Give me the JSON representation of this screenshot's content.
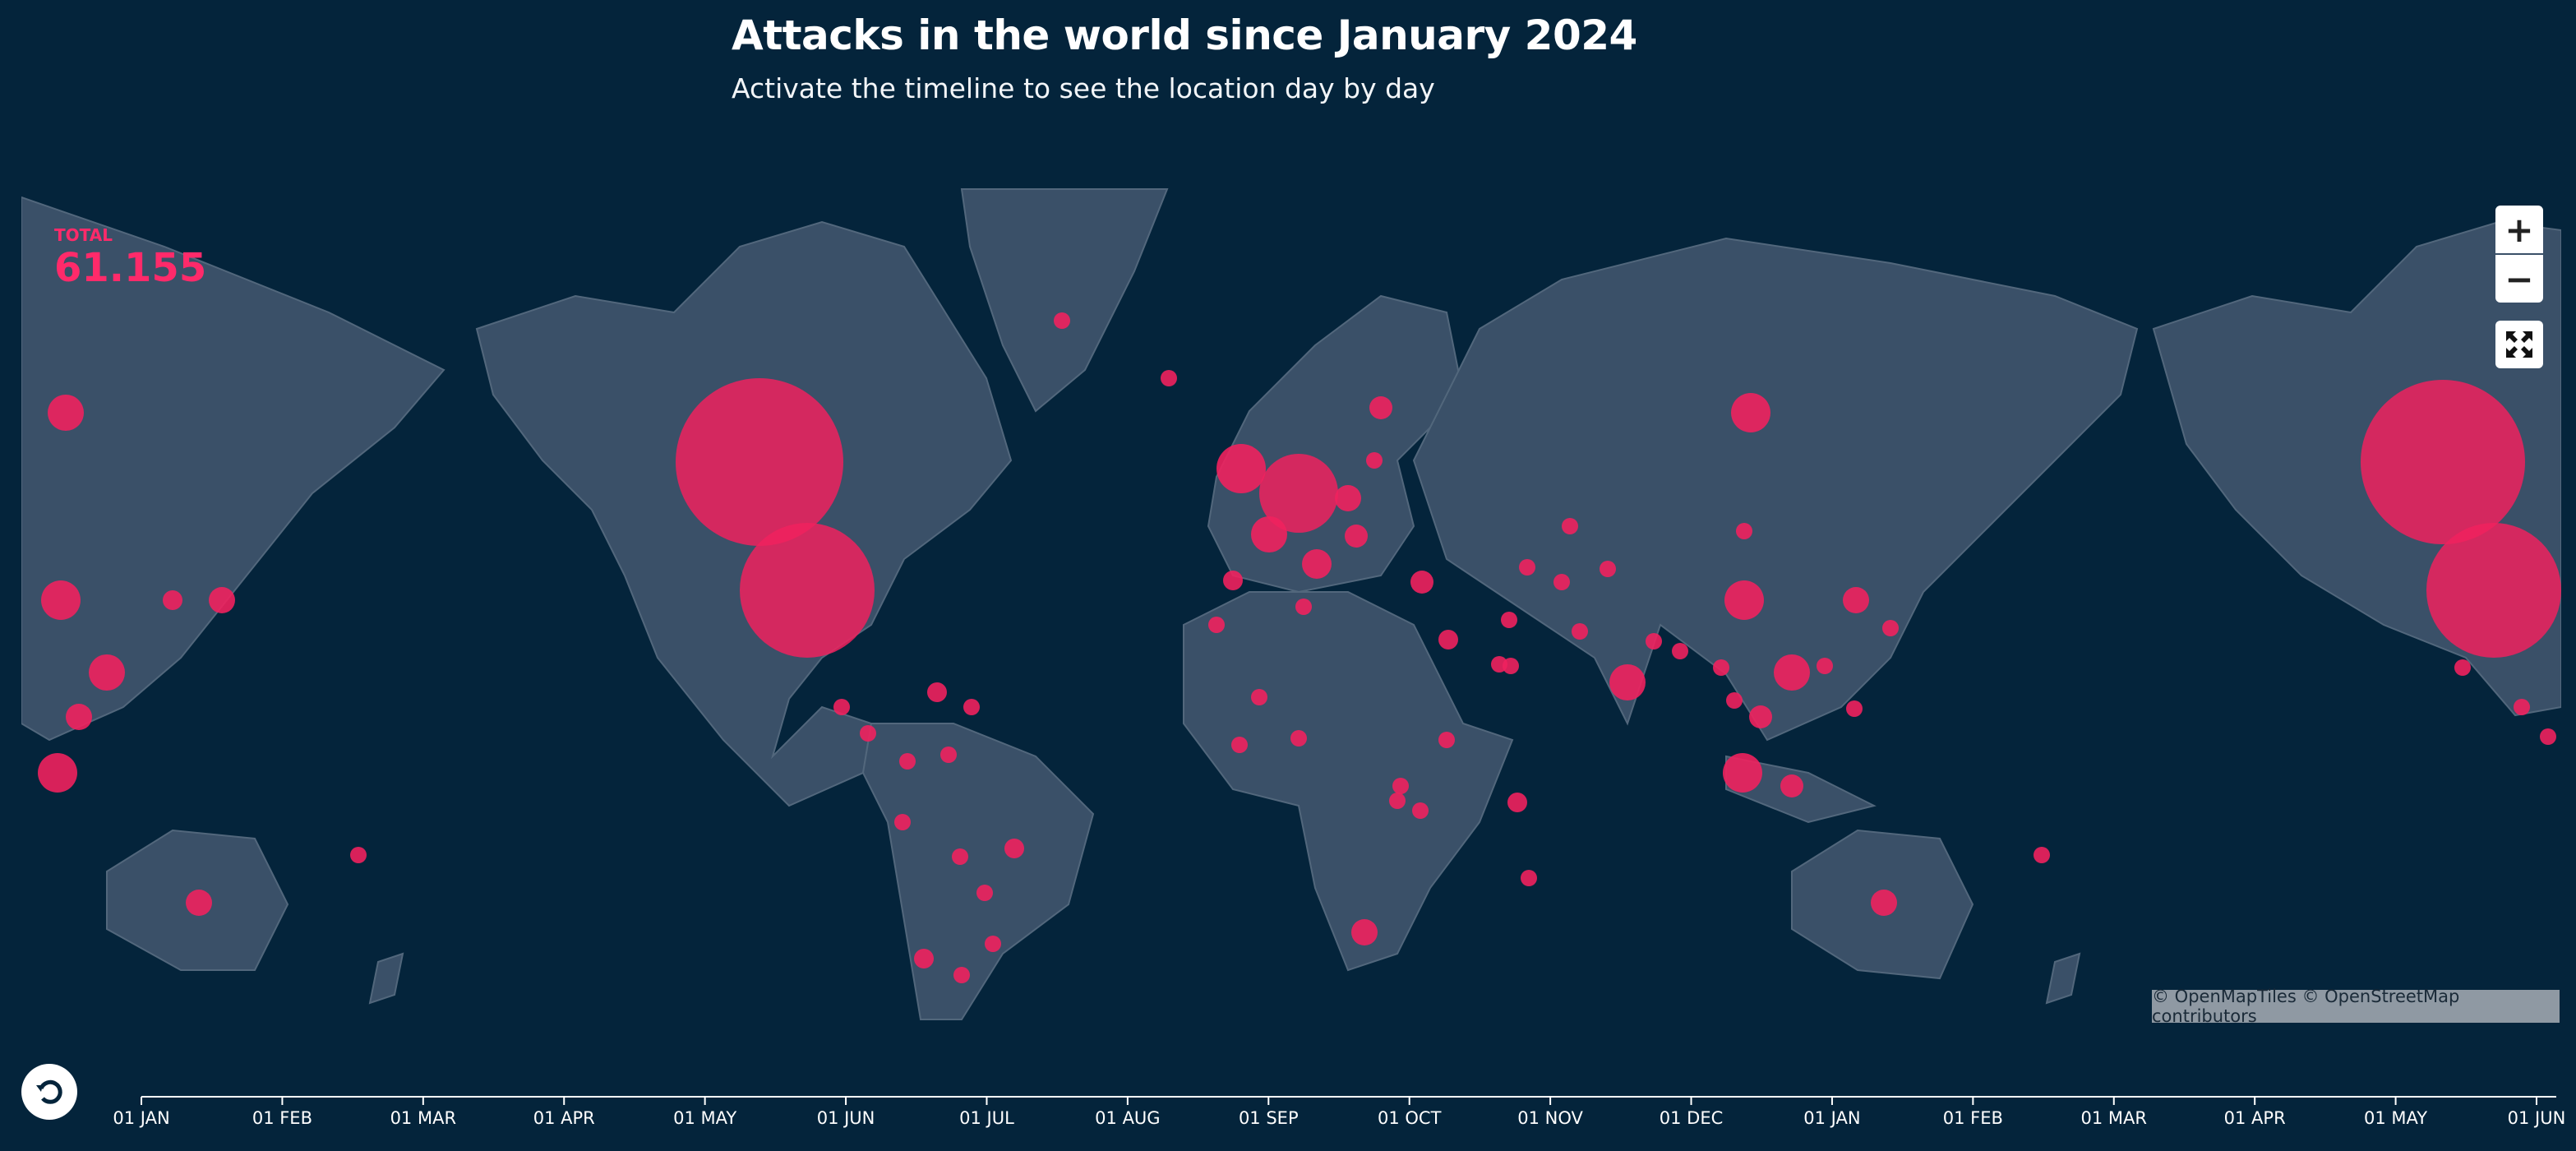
{
  "header": {
    "title": "Attacks in the world since January 2024",
    "subtitle": "Activate the timeline to see the location day by day"
  },
  "counter": {
    "label": "TOTAL",
    "value": "61.155"
  },
  "controls": {
    "zoom_in": "+",
    "zoom_out": "−"
  },
  "attribution": "© OpenMapTiles © OpenStreetMap contributors",
  "timeline": {
    "ticks": [
      "01 JAN",
      "01 FEB",
      "01 MAR",
      "01 APR",
      "01 MAY",
      "01 JUN",
      "01 JUL",
      "01 AUG",
      "01 SEP",
      "01 OCT",
      "01 NOV",
      "01 DEC",
      "01 JAN",
      "01 FEB",
      "01 MAR",
      "01 APR",
      "01 MAY",
      "01 JUN"
    ]
  }
}
